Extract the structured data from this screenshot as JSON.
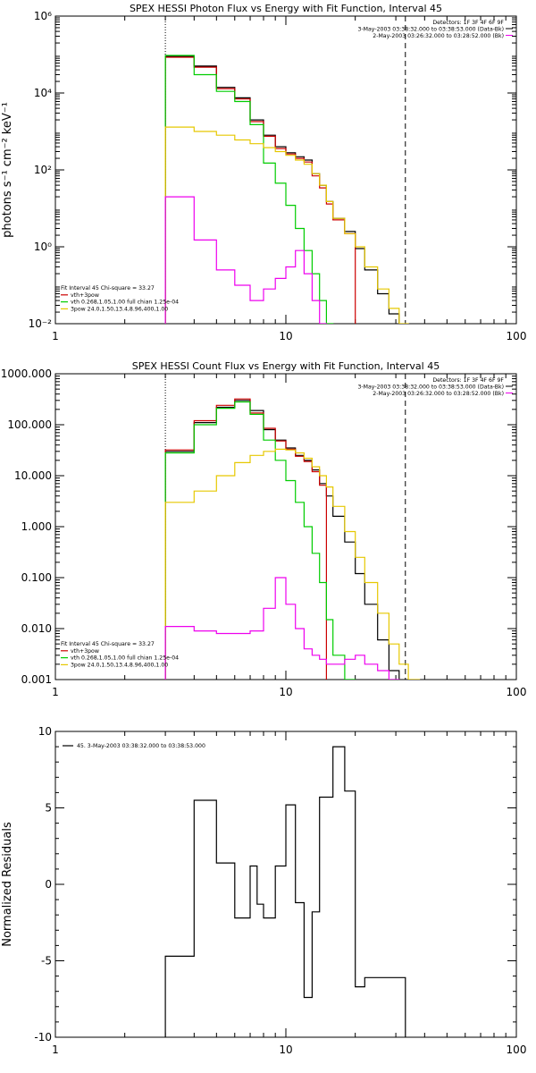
{
  "chart_data": [
    {
      "type": "line",
      "title": "SPEX HESSI Photon Flux vs Energy with Fit Function, Interval 45",
      "xlabel": "",
      "ylabel": "photons s⁻¹ cm⁻² keV⁻¹",
      "x_scale": "log",
      "y_scale": "log",
      "xlim": [
        1,
        100
      ],
      "ylim": [
        0.01,
        1000000
      ],
      "x_ticks": [
        1,
        10,
        100
      ],
      "x_tick_labels": [
        "1",
        "10",
        "100"
      ],
      "y_ticks": [
        0.01,
        1,
        100,
        10000,
        1000000
      ],
      "y_tick_labels": [
        "10⁻²",
        "10⁰",
        "10²",
        "10⁴",
        "10⁶"
      ],
      "header_lines": [
        "Detectors: 1F 3F 4F 6F 9F",
        "3-May-2003 03:38:32.000 to 03:38:53.000 (Data-Bk)",
        "2-May-2003 03:26:32.000 to 03:28:52.000 (Bk)"
      ],
      "fit_info": [
        "Fit Interval 45   Chi-square = 33.27",
        "vth+3pow",
        "vth 0.268,1.05,1.00  full chian 1.25e-04",
        "3pow 24.0,1.50,13.4,8.96,400,1.00"
      ],
      "fit_info_colors": [
        "#000000",
        "#cc0000",
        "#00cc00",
        "#e6c800"
      ],
      "vlines": [
        {
          "x": 3.0,
          "style": "dotted"
        },
        {
          "x": 33.0,
          "style": "dashed"
        }
      ],
      "edges": [
        3.0,
        4.0,
        5.0,
        6.0,
        7.0,
        8.0,
        9.0,
        10.0,
        11.0,
        12.0,
        13.0,
        14.0,
        15.0,
        16.0,
        18.0,
        20.0,
        22.0,
        25.0,
        28.0,
        31.0,
        34.0,
        38.0,
        43.0
      ],
      "series": [
        {
          "name": "Data-Bk",
          "color": "#000000",
          "values": [
            90000,
            50000,
            14000,
            7500,
            2000,
            800,
            400,
            280,
            220,
            180,
            80,
            40,
            15,
            5.5,
            2.5,
            0.9,
            0.25,
            0.06,
            0.018,
            null,
            null,
            null
          ]
        },
        {
          "name": "vth+3pow",
          "color": "#cc0000",
          "values": [
            85000,
            47000,
            13000,
            7000,
            1800,
            750,
            360,
            260,
            200,
            160,
            70,
            34,
            13,
            5,
            2.2,
            null,
            null,
            null,
            null,
            null,
            null,
            null
          ]
        },
        {
          "name": "vth",
          "color": "#00cc00",
          "values": [
            95000,
            30000,
            11000,
            6000,
            1500,
            150,
            45,
            12,
            3,
            0.8,
            0.2,
            0.04,
            0.01,
            null,
            null,
            null,
            null,
            null,
            null,
            null,
            null,
            null
          ]
        },
        {
          "name": "3pow",
          "color": "#e6c800",
          "values": [
            1300,
            1000,
            800,
            600,
            480,
            380,
            300,
            240,
            180,
            140,
            80,
            40,
            15,
            5.5,
            2.2,
            1.0,
            0.3,
            0.08,
            0.025,
            0.01,
            null,
            null
          ]
        },
        {
          "name": "",
          "color": "#ee00ee",
          "values": [
            20,
            1.5,
            0.25,
            0.1,
            0.04,
            0.08,
            0.15,
            0.3,
            0.8,
            0.2,
            0.04,
            0.01,
            0.008,
            0.006,
            null,
            null,
            null,
            null,
            null,
            null,
            null,
            null
          ]
        }
      ]
    },
    {
      "type": "line",
      "title": "SPEX HESSI Count Flux vs Energy with Fit Function, Interval 45",
      "xlabel": "",
      "ylabel": "",
      "x_scale": "log",
      "y_scale": "log",
      "xlim": [
        1,
        100
      ],
      "ylim": [
        0.001,
        1000
      ],
      "x_ticks": [
        1,
        10,
        100
      ],
      "x_tick_labels": [
        "1",
        "10",
        "100"
      ],
      "y_ticks": [
        0.001,
        0.01,
        0.1,
        1,
        10,
        100,
        1000
      ],
      "y_tick_labels": [
        "0.001",
        "0.010",
        "0.100",
        "1.000",
        "10.000",
        "100.000",
        "1000.000"
      ],
      "header_lines": [
        "Detectors: 1F 3F 4F 6F 9F",
        "3-May-2003 03:38:32.000 to 03:38:53.000 (Data-Bk)",
        "2-May-2003 03:26:32.000 to 03:28:52.000 (Bk)"
      ],
      "fit_info": [
        "Fit Interval 45   Chi-square = 33.27",
        "vth+3pow",
        "vth 0.268,1.05,1.00  full chian 1.25e-04",
        "3pow 24.0,1.50,13.4,8.96,400,1.00"
      ],
      "fit_info_colors": [
        "#000000",
        "#cc0000",
        "#00cc00",
        "#e6c800"
      ],
      "vlines": [
        {
          "x": 3.0,
          "style": "dotted"
        },
        {
          "x": 33.0,
          "style": "dashed"
        }
      ],
      "edges": [
        3.0,
        4.0,
        5.0,
        6.0,
        7.0,
        8.0,
        9.0,
        10.0,
        11.0,
        12.0,
        13.0,
        14.0,
        15.0,
        16.0,
        18.0,
        20.0,
        22.0,
        25.0,
        28.0,
        31.0,
        34.0,
        38.0,
        43.0
      ],
      "series": [
        {
          "name": "Data-Bk",
          "color": "#000000",
          "values": [
            30,
            110,
            220,
            300,
            190,
            80,
            50,
            35,
            25,
            20,
            13,
            7,
            4,
            1.6,
            0.5,
            0.12,
            0.03,
            0.006,
            0.0015,
            null,
            null,
            null
          ]
        },
        {
          "name": "vth+3pow",
          "color": "#cc0000",
          "values": [
            32,
            120,
            240,
            320,
            170,
            85,
            48,
            33,
            24,
            19,
            12,
            6.5,
            null,
            null,
            null,
            null,
            null,
            null,
            null,
            null,
            null,
            null
          ]
        },
        {
          "name": "vth",
          "color": "#00cc00",
          "values": [
            28,
            100,
            210,
            280,
            160,
            50,
            20,
            8,
            3,
            1.0,
            0.3,
            0.08,
            0.015,
            0.003,
            0.001,
            null,
            null,
            null,
            null,
            null,
            null,
            null
          ]
        },
        {
          "name": "3pow",
          "color": "#e6c800",
          "values": [
            3,
            5,
            10,
            18,
            25,
            30,
            33,
            32,
            28,
            22,
            15,
            10,
            6,
            2.5,
            0.8,
            0.25,
            0.08,
            0.02,
            0.005,
            0.002,
            0.001,
            null
          ]
        },
        {
          "name": "",
          "color": "#ee00ee",
          "values": [
            0.011,
            0.009,
            0.008,
            0.008,
            0.009,
            0.025,
            0.1,
            0.03,
            0.01,
            0.004,
            0.003,
            0.0025,
            0.002,
            0.002,
            0.0025,
            0.003,
            0.002,
            0.0015,
            0.001,
            null,
            null,
            null
          ]
        }
      ]
    },
    {
      "type": "line",
      "title": "",
      "xlabel": "",
      "ylabel": "Normalized Residuals",
      "x_scale": "log",
      "y_scale": "linear",
      "xlim": [
        1,
        100
      ],
      "ylim": [
        -10,
        10
      ],
      "x_ticks": [
        1,
        10,
        100
      ],
      "x_tick_labels": [
        "1",
        "10",
        "100"
      ],
      "y_ticks": [
        -10,
        -5,
        0,
        5,
        10
      ],
      "y_tick_labels": [
        "-10",
        "-5",
        "0",
        "5",
        "10"
      ],
      "legend": "45.  3-May-2003 03:38:32.000 to 03:38:53.000",
      "edges": [
        3.0,
        4.0,
        5.0,
        6.0,
        7.0,
        7.5,
        8.0,
        9.0,
        10.0,
        11.0,
        12.0,
        13.0,
        14.0,
        16.0,
        18.0,
        20.0,
        22.0,
        25.0,
        28.0,
        33.0
      ],
      "series": [
        {
          "name": "45.  3-May-2003 03:38:32.000 to 03:38:53.000",
          "color": "#000000",
          "values": [
            -4.7,
            5.5,
            1.4,
            -2.2,
            1.2,
            -1.3,
            -2.2,
            1.2,
            5.2,
            -1.2,
            -7.4,
            -1.8,
            5.7,
            9.0,
            6.1,
            -6.7,
            -6.1,
            -6.1,
            -6.1
          ]
        }
      ]
    }
  ]
}
